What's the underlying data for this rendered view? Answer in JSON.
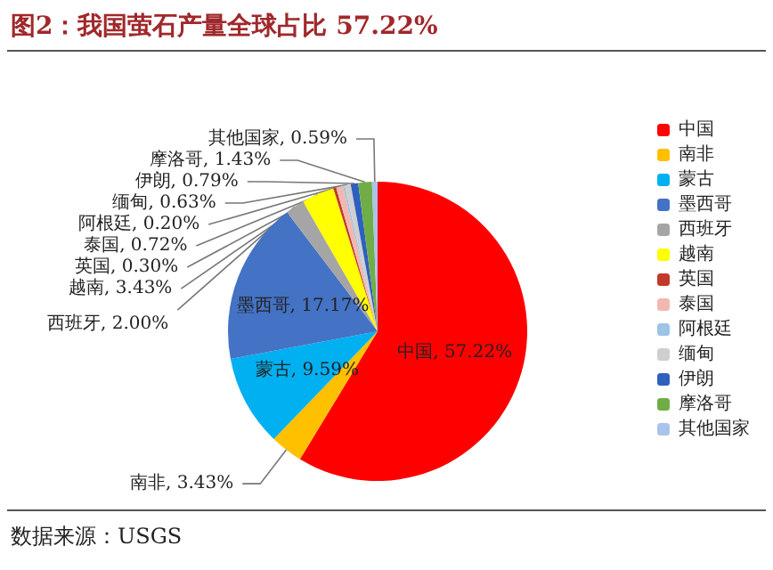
{
  "chart_data": {
    "type": "pie",
    "title": "图2：我国萤石产量全球占比 57.22%",
    "categories": [
      "中国",
      "南非",
      "蒙古",
      "墨西哥",
      "西班牙",
      "越南",
      "英国",
      "泰国",
      "阿根廷",
      "缅甸",
      "伊朗",
      "摩洛哥",
      "其他国家"
    ],
    "values": [
      57.22,
      3.43,
      9.59,
      17.17,
      2.0,
      3.43,
      0.3,
      0.72,
      0.2,
      0.63,
      0.79,
      1.43,
      0.59
    ],
    "value_labels": [
      "中国, 57.22%",
      "南非, 3.43%",
      "蒙古, 9.59%",
      "墨西哥, 17.17%",
      "西班牙, 2.00%",
      "越南, 3.43%",
      "英国, 0.30%",
      "泰国, 0.72%",
      "阿根廷, 0.20%",
      "缅甸, 0.63%",
      "伊朗, 0.79%",
      "摩洛哥, 1.43%",
      "其他国家, 0.59%"
    ],
    "colors": [
      "#ff0000",
      "#ffc000",
      "#00b0f0",
      "#4472c4",
      "#a5a5a5",
      "#ffff00",
      "#c0392b",
      "#f2b8b0",
      "#9dc3e6",
      "#cfcfcf",
      "#2f5fbf",
      "#70ad47",
      "#a9c4eb"
    ],
    "legend": "right",
    "annotations": [
      "数据来源：USGS"
    ]
  }
}
